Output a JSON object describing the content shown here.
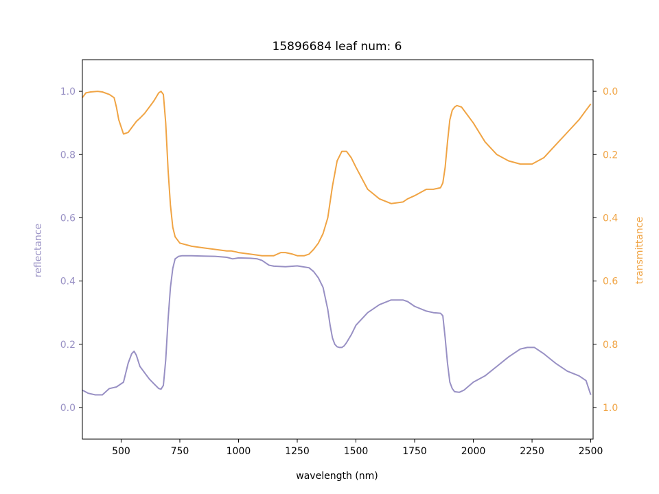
{
  "chart_data": {
    "type": "line",
    "title": "15896684 leaf num: 6",
    "xlabel": "wavelength (nm)",
    "ylabel_left": "reflectance",
    "ylabel_right": "transmittance",
    "xlim": [
      335,
      2510
    ],
    "ylim_left": [
      -0.1,
      1.1
    ],
    "ylim_right": [
      1.1,
      -0.1
    ],
    "right_axis_inverted": true,
    "x_ticks": [
      500,
      750,
      1000,
      1250,
      1500,
      1750,
      2000,
      2250,
      2500
    ],
    "x_tick_labels": [
      "500",
      "750",
      "1000",
      "1250",
      "1500",
      "1750",
      "2000",
      "2250",
      "2500"
    ],
    "y_left_ticks": [
      0.0,
      0.2,
      0.4,
      0.6,
      0.8,
      1.0
    ],
    "y_left_tick_labels": [
      "0.0",
      "0.2",
      "0.4",
      "0.6",
      "0.8",
      "1.0"
    ],
    "y_right_ticks": [
      0.0,
      0.2,
      0.4,
      0.6,
      0.8,
      1.0
    ],
    "y_right_tick_labels": [
      "0.0",
      "0.2",
      "0.4",
      "0.6",
      "0.8",
      "1.0"
    ],
    "grid": false,
    "colors": {
      "reflectance": "#9890c4",
      "transmittance": "#f0a444"
    },
    "series": [
      {
        "name": "reflectance",
        "axis": "left",
        "x": [
          335,
          360,
          390,
          420,
          450,
          480,
          510,
          530,
          545,
          555,
          565,
          580,
          600,
          620,
          640,
          660,
          670,
          680,
          690,
          700,
          710,
          720,
          730,
          745,
          760,
          800,
          850,
          900,
          950,
          975,
          1000,
          1050,
          1080,
          1100,
          1130,
          1150,
          1200,
          1250,
          1300,
          1320,
          1340,
          1360,
          1380,
          1390,
          1400,
          1410,
          1420,
          1430,
          1440,
          1450,
          1460,
          1480,
          1500,
          1550,
          1600,
          1650,
          1700,
          1720,
          1750,
          1800,
          1830,
          1860,
          1870,
          1880,
          1890,
          1900,
          1910,
          1920,
          1940,
          1960,
          2000,
          2050,
          2100,
          2150,
          2200,
          2230,
          2260,
          2300,
          2350,
          2400,
          2450,
          2480,
          2500
        ],
        "y": [
          0.055,
          0.045,
          0.04,
          0.04,
          0.06,
          0.065,
          0.08,
          0.14,
          0.17,
          0.178,
          0.165,
          0.13,
          0.11,
          0.09,
          0.075,
          0.06,
          0.058,
          0.07,
          0.15,
          0.28,
          0.38,
          0.44,
          0.47,
          0.478,
          0.48,
          0.48,
          0.479,
          0.478,
          0.475,
          0.47,
          0.473,
          0.472,
          0.47,
          0.465,
          0.45,
          0.447,
          0.445,
          0.448,
          0.442,
          0.43,
          0.41,
          0.38,
          0.31,
          0.26,
          0.22,
          0.2,
          0.192,
          0.19,
          0.19,
          0.195,
          0.205,
          0.23,
          0.26,
          0.3,
          0.325,
          0.34,
          0.34,
          0.335,
          0.32,
          0.305,
          0.3,
          0.298,
          0.29,
          0.22,
          0.14,
          0.08,
          0.06,
          0.05,
          0.048,
          0.055,
          0.08,
          0.1,
          0.13,
          0.16,
          0.185,
          0.19,
          0.19,
          0.17,
          0.14,
          0.115,
          0.1,
          0.085,
          0.04
        ]
      },
      {
        "name": "transmittance",
        "axis": "right",
        "x": [
          335,
          350,
          370,
          400,
          420,
          450,
          470,
          480,
          490,
          510,
          530,
          545,
          555,
          565,
          580,
          600,
          620,
          640,
          660,
          670,
          680,
          690,
          700,
          710,
          720,
          730,
          750,
          800,
          850,
          900,
          950,
          970,
          990,
          1000,
          1050,
          1100,
          1150,
          1180,
          1200,
          1230,
          1250,
          1280,
          1300,
          1320,
          1340,
          1360,
          1380,
          1400,
          1420,
          1440,
          1460,
          1480,
          1500,
          1550,
          1600,
          1650,
          1700,
          1720,
          1750,
          1800,
          1830,
          1860,
          1870,
          1880,
          1890,
          1900,
          1910,
          1920,
          1930,
          1950,
          2000,
          2050,
          2100,
          2150,
          2200,
          2250,
          2300,
          2350,
          2400,
          2450,
          2480,
          2500
        ],
        "y": [
          0.02,
          0.005,
          0.002,
          0.0,
          0.002,
          0.01,
          0.02,
          0.05,
          0.09,
          0.135,
          0.13,
          0.115,
          0.105,
          0.095,
          0.085,
          0.07,
          0.05,
          0.03,
          0.005,
          0.0,
          0.01,
          0.1,
          0.25,
          0.36,
          0.43,
          0.46,
          0.48,
          0.49,
          0.495,
          0.5,
          0.505,
          0.505,
          0.508,
          0.51,
          0.515,
          0.52,
          0.52,
          0.51,
          0.51,
          0.515,
          0.52,
          0.52,
          0.515,
          0.5,
          0.48,
          0.45,
          0.4,
          0.3,
          0.22,
          0.19,
          0.19,
          0.21,
          0.24,
          0.31,
          0.34,
          0.355,
          0.35,
          0.34,
          0.33,
          0.31,
          0.31,
          0.305,
          0.29,
          0.24,
          0.16,
          0.09,
          0.06,
          0.05,
          0.045,
          0.05,
          0.1,
          0.16,
          0.2,
          0.22,
          0.23,
          0.23,
          0.21,
          0.17,
          0.13,
          0.09,
          0.06,
          0.04
        ]
      }
    ],
    "annotations": []
  }
}
